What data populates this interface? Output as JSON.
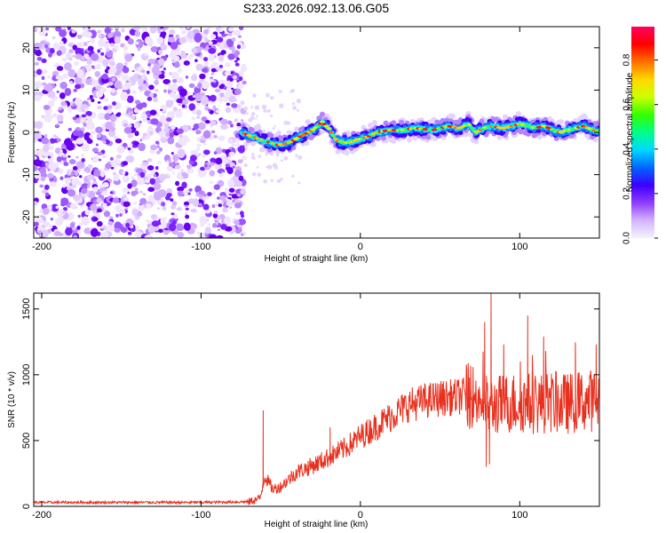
{
  "page": {
    "title": "S233.2026.092.13.06.G05"
  },
  "colors": {
    "snr_line": "#e8301e",
    "noise": "#8e3cff",
    "axis": "#000000"
  },
  "chart_data": [
    {
      "type": "heatmap",
      "xlabel": "Height of straight line (km)",
      "ylabel": "Frequency (Hz)",
      "xlim": [
        -205,
        150
      ],
      "ylim": [
        -25,
        25
      ],
      "x_ticks": [
        -200,
        -100,
        0,
        100
      ],
      "y_ticks": [
        -20,
        -10,
        0,
        10,
        20
      ],
      "noise_region_x": [
        -205,
        -75
      ],
      "ridge": {
        "x": [
          -75,
          -68,
          -60,
          -52,
          -45,
          -38,
          -30,
          -24,
          -20,
          -15,
          -8,
          0,
          5,
          10,
          18,
          25,
          35,
          45,
          55,
          62,
          68,
          72,
          80,
          90,
          100,
          110,
          115,
          125,
          135,
          140,
          150
        ],
        "frequency": [
          0,
          -1,
          -2,
          -3,
          -2.5,
          -1,
          0.5,
          2.5,
          1,
          -2,
          -2.5,
          -1.5,
          -1,
          0,
          0.5,
          0.5,
          1,
          0.5,
          1.5,
          1,
          2,
          0,
          1.5,
          1,
          2,
          1,
          1.5,
          0,
          1,
          1.5,
          0
        ]
      },
      "colorbar": {
        "label": "Normalized spectral amplitude",
        "range": [
          0,
          0.95
        ],
        "ticks": [
          "0.0",
          "0.2",
          "0.4",
          "0.6",
          "0.8"
        ],
        "tick_values": [
          0,
          0.2,
          0.4,
          0.6,
          0.8
        ],
        "colormap": [
          "#f3f3ff",
          "#d4b4ff",
          "#8e3cff",
          "#3c00ff",
          "#0066ff",
          "#00d8ff",
          "#00ff88",
          "#33ff00",
          "#ccff00",
          "#ffd800",
          "#ff7000",
          "#ff0000",
          "#ff0060"
        ]
      }
    },
    {
      "type": "line",
      "xlabel": "Height of straight line (km)",
      "ylabel": "SNR (10 * v/v)",
      "xlim": [
        -205,
        150
      ],
      "ylim": [
        0,
        1620
      ],
      "x_ticks": [
        -200,
        -100,
        0,
        100
      ],
      "y_ticks": [
        0,
        500,
        1000,
        1500
      ],
      "envelope": {
        "x": [
          -205,
          -150,
          -100,
          -70,
          -63,
          -60,
          -55,
          -50,
          -40,
          -30,
          -20,
          -10,
          0,
          10,
          20,
          30,
          40,
          50,
          60,
          65,
          70,
          75,
          80,
          90,
          100,
          110,
          120,
          130,
          140,
          150
        ],
        "snr": [
          30,
          30,
          30,
          35,
          60,
          230,
          130,
          150,
          260,
          310,
          370,
          440,
          530,
          610,
          690,
          770,
          800,
          820,
          830,
          840,
          840,
          820,
          760,
          780,
          790,
          780,
          790,
          780,
          800,
          810
        ]
      },
      "spikes": [
        {
          "x": -61,
          "snr": 730
        },
        {
          "x": -19,
          "snr": 600
        },
        {
          "x": 78,
          "snr": 1400
        },
        {
          "x": 82,
          "snr": 1620
        },
        {
          "x": 90,
          "snr": 1230
        },
        {
          "x": 105,
          "snr": 1450
        },
        {
          "x": 115,
          "snr": 1290
        },
        {
          "x": 135,
          "snr": 1140
        },
        {
          "x": 148,
          "snr": 1230
        }
      ],
      "dips": [
        {
          "x": 79,
          "snr": 300
        },
        {
          "x": 81,
          "snr": 320
        }
      ]
    }
  ]
}
